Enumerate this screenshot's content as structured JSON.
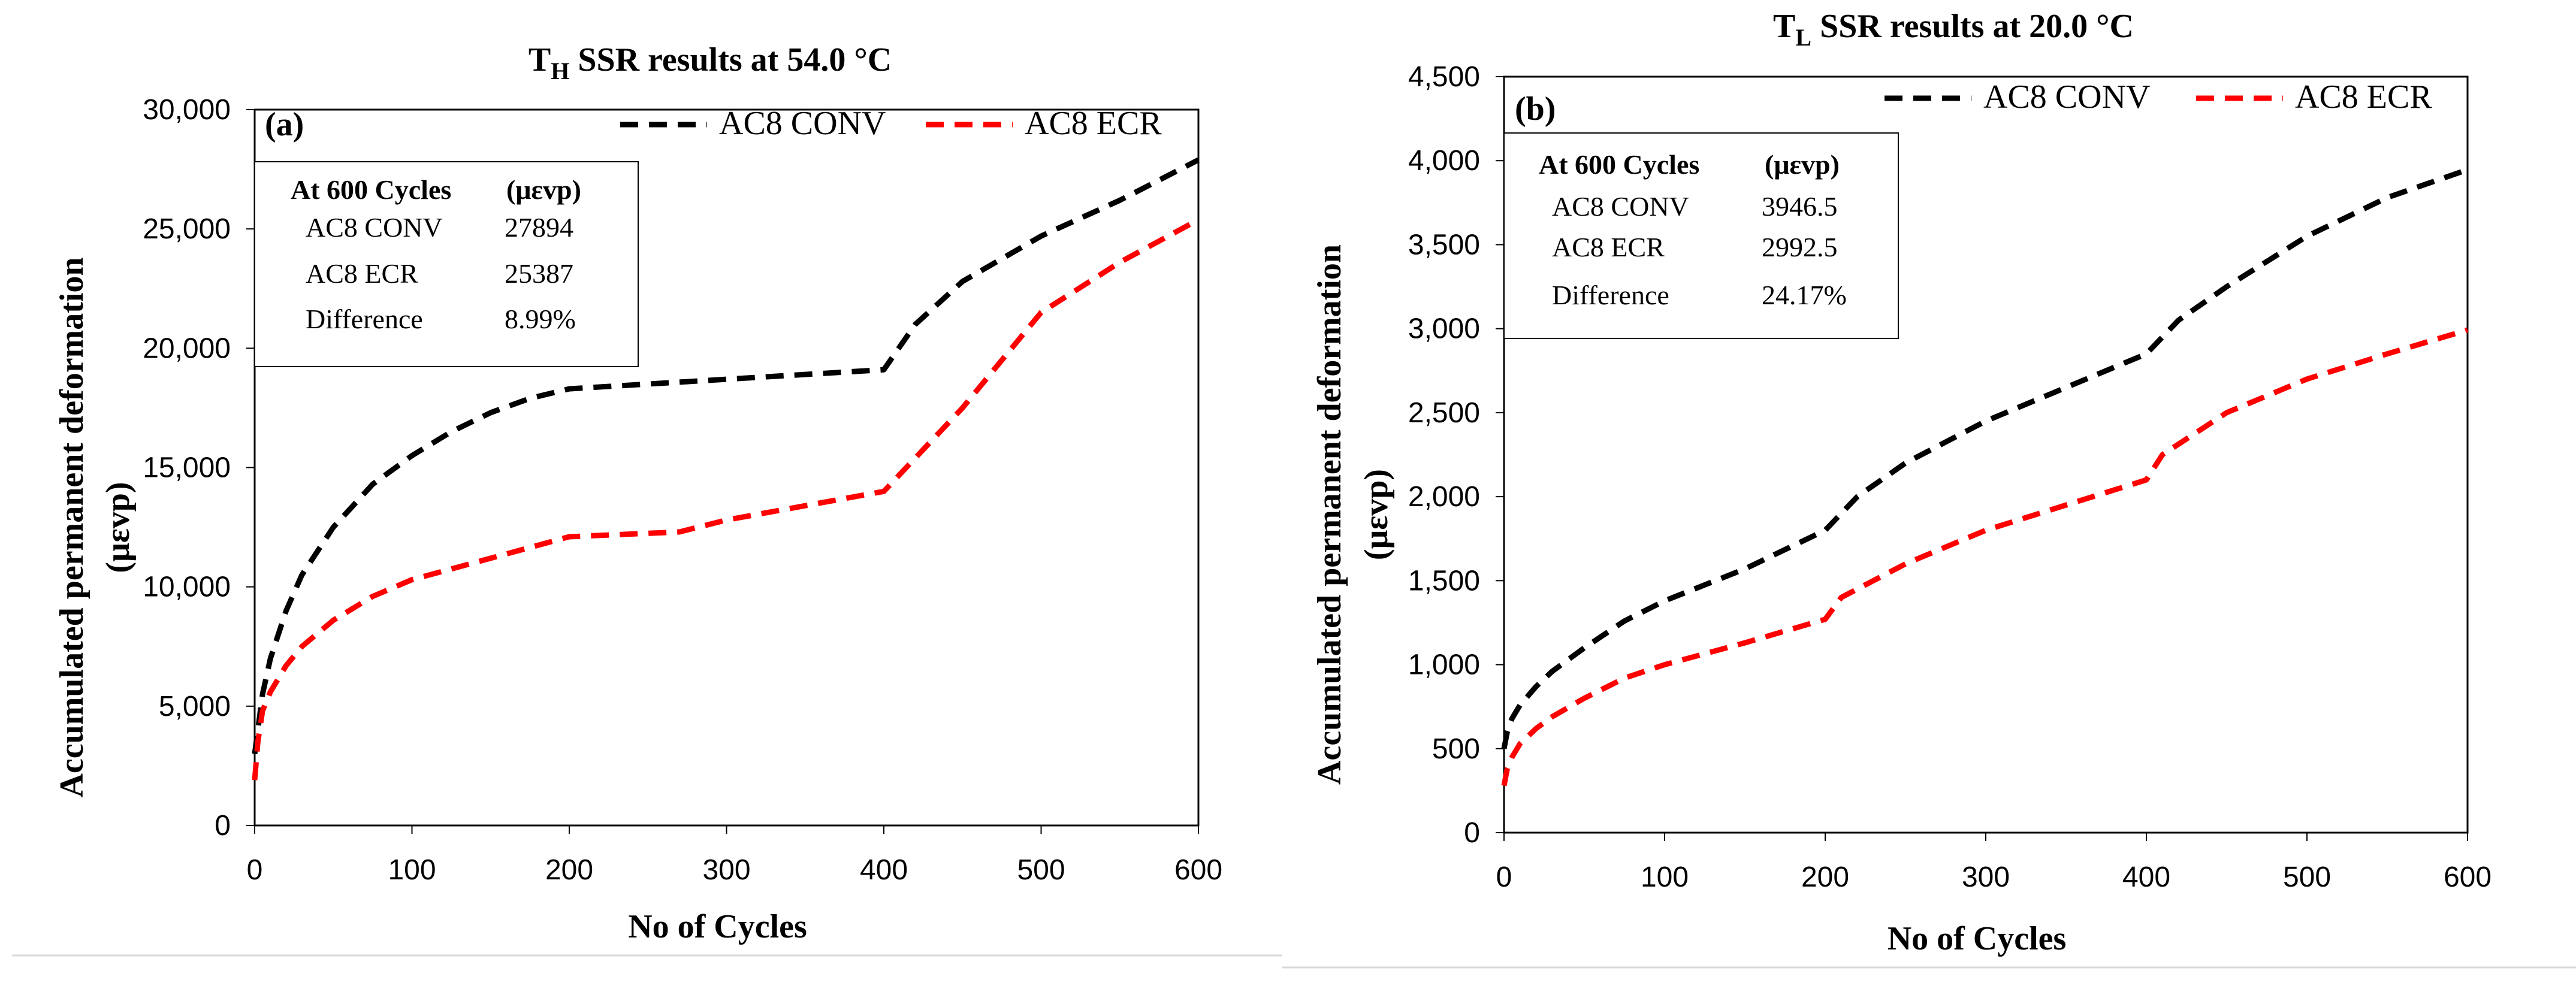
{
  "chart_data": [
    {
      "type": "line",
      "panel": "(a)",
      "title_main": "T",
      "title_sub": "H",
      "title_rest": " SSR results at 54.0 °C",
      "xlabel": "No of Cycles",
      "ylabel_line1": "Accumulated permanent deformation",
      "ylabel_line2": "(μεvp)",
      "xlim": [
        0,
        600
      ],
      "ylim": [
        0,
        30000
      ],
      "x_ticks": [
        0,
        100,
        200,
        300,
        400,
        500,
        600
      ],
      "x_tick_labels": [
        "0",
        "100",
        "200",
        "300",
        "400",
        "500",
        "600"
      ],
      "y_ticks": [
        0,
        5000,
        10000,
        15000,
        20000,
        25000,
        30000
      ],
      "y_tick_labels": [
        "0",
        "5,000",
        "10,000",
        "15,000",
        "20,000",
        "25,000",
        "30,000"
      ],
      "legend_position": "top-right",
      "series": [
        {
          "name": "AC8 CONV",
          "color": "#000000",
          "x": [
            0,
            2,
            5,
            10,
            20,
            30,
            50,
            75,
            100,
            125,
            150,
            175,
            200,
            250,
            300,
            350,
            400,
            420,
            450,
            500,
            550,
            600
          ],
          "y": [
            3000,
            4000,
            5500,
            7000,
            9000,
            10500,
            12500,
            14300,
            15500,
            16500,
            17300,
            17900,
            18300,
            18500,
            18700,
            18900,
            19100,
            21000,
            22800,
            24700,
            26200,
            27894
          ]
        },
        {
          "name": "AC8 ECR",
          "color": "#ff0000",
          "x": [
            0,
            2,
            5,
            10,
            20,
            30,
            50,
            75,
            100,
            150,
            200,
            270,
            300,
            350,
            400,
            450,
            500,
            550,
            600
          ],
          "y": [
            1900,
            3500,
            4800,
            5600,
            6700,
            7500,
            8600,
            9600,
            10300,
            11200,
            12100,
            12300,
            12800,
            13400,
            14000,
            17500,
            21500,
            23600,
            25387
          ]
        }
      ],
      "table": {
        "header": [
          "At 600 Cycles",
          "(μεvp)"
        ],
        "rows": [
          [
            "AC8 CONV",
            "27894"
          ],
          [
            "AC8 ECR",
            "25387"
          ],
          [
            "Difference",
            "8.99%"
          ]
        ]
      }
    },
    {
      "type": "line",
      "panel": "(b)",
      "title_main": "T",
      "title_sub": "L",
      "title_rest": " SSR results at 20.0 °C",
      "xlabel": "No of Cycles",
      "ylabel_line1": "Accumulated permanent deformation",
      "ylabel_line2": "(μεvp)",
      "xlim": [
        0,
        600
      ],
      "ylim": [
        0,
        4500
      ],
      "x_ticks": [
        0,
        100,
        200,
        300,
        400,
        500,
        600
      ],
      "x_tick_labels": [
        "0",
        "100",
        "200",
        "300",
        "400",
        "500",
        "600"
      ],
      "y_ticks": [
        0,
        500,
        1000,
        1500,
        2000,
        2500,
        3000,
        3500,
        4000,
        4500
      ],
      "y_tick_labels": [
        "0",
        "500",
        "1,000",
        "1,500",
        "2,000",
        "2,500",
        "3,000",
        "3,500",
        "4,000",
        "4,500"
      ],
      "legend_position": "top-right",
      "series": [
        {
          "name": "AC8 CONV",
          "color": "#000000",
          "x": [
            0,
            2,
            5,
            10,
            20,
            30,
            50,
            75,
            100,
            150,
            200,
            220,
            250,
            300,
            350,
            400,
            420,
            450,
            500,
            550,
            600
          ],
          "y": [
            500,
            600,
            680,
            760,
            870,
            960,
            1100,
            1260,
            1380,
            1570,
            1800,
            2000,
            2200,
            2450,
            2650,
            2850,
            3050,
            3250,
            3550,
            3780,
            3946.5
          ]
        },
        {
          "name": "AC8 ECR",
          "color": "#ff0000",
          "x": [
            0,
            2,
            5,
            10,
            20,
            30,
            50,
            75,
            100,
            150,
            200,
            210,
            250,
            300,
            350,
            400,
            410,
            450,
            500,
            550,
            600
          ],
          "y": [
            280,
            380,
            450,
            530,
            620,
            690,
            800,
            920,
            1000,
            1130,
            1270,
            1400,
            1600,
            1800,
            1950,
            2100,
            2250,
            2500,
            2700,
            2850,
            2992.5
          ]
        }
      ],
      "table": {
        "header": [
          "At 600 Cycles",
          "(μεvp)"
        ],
        "rows": [
          [
            "AC8 CONV",
            "3946.5"
          ],
          [
            "AC8 ECR",
            "2992.5"
          ],
          [
            "Difference",
            "24.17%"
          ]
        ]
      }
    }
  ]
}
